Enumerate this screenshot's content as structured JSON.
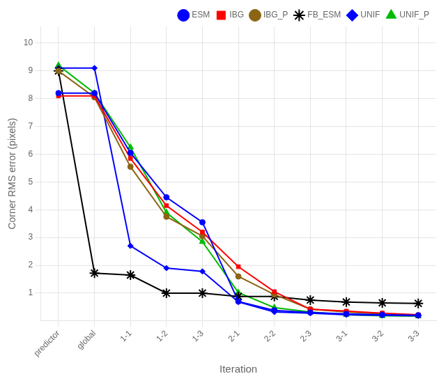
{
  "chart_data": {
    "type": "line",
    "categories": [
      "predictor",
      "global",
      "1-1",
      "1-2",
      "1-3",
      "2-1",
      "2-2",
      "2-3",
      "3-1",
      "3-2",
      "3-3"
    ],
    "series": [
      {
        "name": "ESM",
        "color": "#0000FF",
        "marker": "circle",
        "values": [
          8.2,
          8.2,
          6.05,
          4.45,
          3.55,
          0.7,
          0.38,
          0.3,
          0.25,
          0.22,
          0.2
        ]
      },
      {
        "name": "IBG",
        "color": "#FF0000",
        "marker": "square",
        "values": [
          8.1,
          8.1,
          5.85,
          4.15,
          3.2,
          1.95,
          1.05,
          0.42,
          0.35,
          0.28,
          0.22
        ]
      },
      {
        "name": "IBG_P",
        "color": "#8B6513",
        "marker": "circle",
        "values": [
          9.0,
          8.05,
          5.55,
          3.75,
          3.05,
          1.6,
          0.95,
          0.42,
          0.32,
          0.25,
          0.2
        ]
      },
      {
        "name": "FB_ESM",
        "color": "#000000",
        "marker": "star",
        "values": [
          9.0,
          1.72,
          1.65,
          1.0,
          1.0,
          0.88,
          0.88,
          0.75,
          0.68,
          0.65,
          0.63
        ]
      },
      {
        "name": "UNIF",
        "color": "#0000FF",
        "marker": "diamond",
        "values": [
          9.1,
          9.1,
          2.7,
          1.9,
          1.78,
          0.68,
          0.32,
          0.28,
          0.22,
          0.2,
          0.18
        ]
      },
      {
        "name": "UNIF_P",
        "color": "#00BB00",
        "marker": "triangle",
        "values": [
          9.2,
          8.2,
          6.25,
          3.9,
          2.85,
          1.02,
          0.48,
          0.32,
          0.22,
          0.18,
          0.17
        ]
      }
    ],
    "xlabel": "Iteration",
    "ylabel": "Corner RMS error (pixels)",
    "ylim": [
      0,
      10.6
    ],
    "yticks": [
      1,
      2,
      3,
      4,
      5,
      6,
      7,
      8,
      9,
      10
    ],
    "grid": true,
    "legend": "upper right"
  }
}
